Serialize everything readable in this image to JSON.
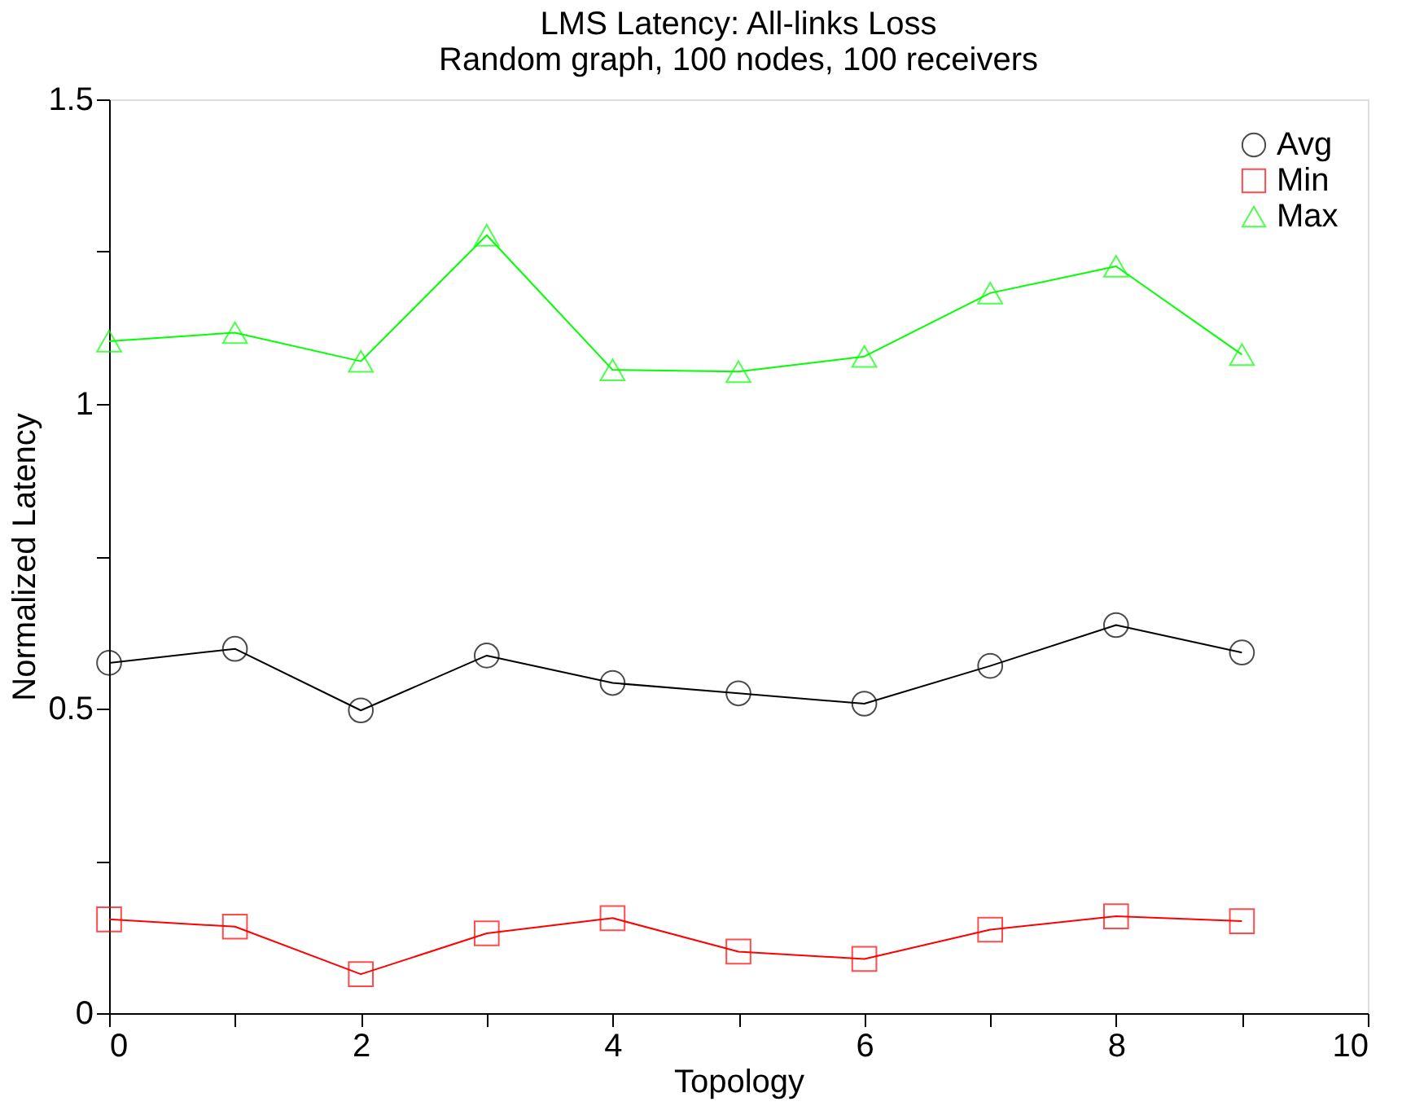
{
  "chart_data": {
    "type": "line",
    "title": "LMS Latency: All-links Loss",
    "subtitle": "Random graph, 100 nodes, 100 receivers",
    "xlabel": "Topology",
    "ylabel": "Normalized Latency",
    "x": [
      0,
      1,
      2,
      3,
      4,
      5,
      6,
      7,
      8,
      9
    ],
    "series": [
      {
        "name": "Avg",
        "color": "#000000",
        "marker": "circle",
        "values": [
          0.575,
          0.598,
          0.497,
          0.587,
          0.542,
          0.525,
          0.508,
          0.57,
          0.637,
          0.592
        ]
      },
      {
        "name": "Min",
        "color": "#ff0000",
        "marker": "square",
        "values": [
          0.154,
          0.142,
          0.064,
          0.131,
          0.156,
          0.101,
          0.089,
          0.137,
          0.159,
          0.151
        ]
      },
      {
        "name": "Max",
        "color": "#00ff00",
        "marker": "triangle",
        "values": [
          1.103,
          1.117,
          1.07,
          1.277,
          1.056,
          1.053,
          1.078,
          1.182,
          1.226,
          1.081
        ]
      }
    ],
    "xlim": [
      0,
      10
    ],
    "xticks": [
      0,
      {
        "value": 1,
        "label": null
      },
      2,
      {
        "value": 3,
        "label": null
      },
      4,
      {
        "value": 5,
        "label": null
      },
      6,
      {
        "value": 7,
        "label": null
      },
      8,
      {
        "value": 9,
        "label": null
      },
      10
    ],
    "ylim": [
      0,
      1.5
    ],
    "yticks": [
      0,
      {
        "value": 0.25,
        "label": null
      },
      0.5,
      {
        "value": 0.75,
        "label": null
      },
      1,
      {
        "value": 1.25,
        "label": null
      },
      1.5
    ],
    "grid": false,
    "legend": "top right",
    "line_style": "solid"
  }
}
